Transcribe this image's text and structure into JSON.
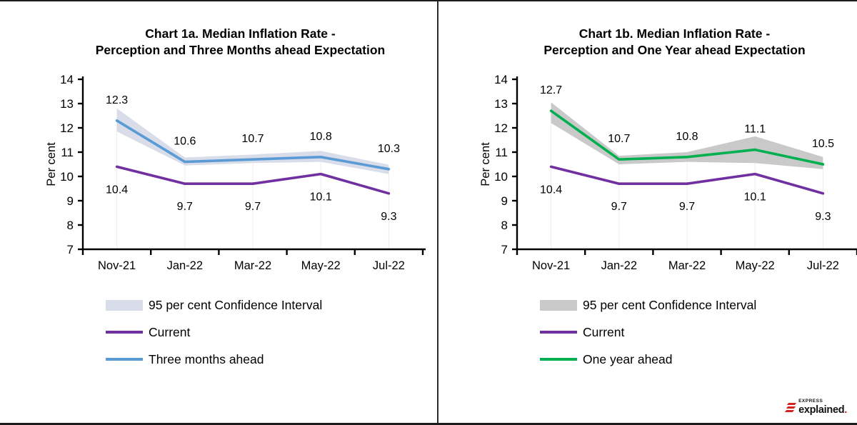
{
  "panels": [
    {
      "title_line1": "Chart 1a. Median Inflation Rate -",
      "title_line2": "Perception and Three Months ahead Expectation",
      "legend": [
        {
          "label": "95 per cent Confidence Interval"
        },
        {
          "label": "Current"
        },
        {
          "label": "Three months ahead"
        }
      ]
    },
    {
      "title_line1": "Chart 1b. Median Inflation Rate -",
      "title_line2": "Perception and One Year ahead Expectation",
      "legend": [
        {
          "label": "95 per cent Confidence Interval"
        },
        {
          "label": "Current"
        },
        {
          "label": "One year ahead"
        }
      ]
    }
  ],
  "chart_data": [
    {
      "type": "line",
      "title": "Chart 1a. Median Inflation Rate - Perception and Three Months ahead Expectation",
      "categories": [
        "Nov-21",
        "Jan-22",
        "Mar-22",
        "May-22",
        "Jul-22"
      ],
      "series": [
        {
          "name": "Current",
          "color": "#7030A0",
          "values": [
            10.4,
            9.7,
            9.7,
            10.1,
            9.3
          ],
          "labels": "below"
        },
        {
          "name": "Three months ahead",
          "color": "#5B9BD5",
          "values": [
            12.3,
            10.6,
            10.7,
            10.8,
            10.3
          ],
          "labels": "above"
        }
      ],
      "band": {
        "name": "95 per cent Confidence Interval",
        "color": "#D9DDE9",
        "upper": [
          12.8,
          10.78,
          10.9,
          11.05,
          10.48
        ],
        "lower": [
          11.85,
          10.45,
          10.55,
          10.6,
          10.1
        ]
      },
      "xlabel": "",
      "ylabel": "Per cent",
      "ylim": [
        7,
        14
      ],
      "yticks": [
        7,
        8,
        9,
        10,
        11,
        12,
        13,
        14
      ],
      "grid": false,
      "legend_position": "bottom"
    },
    {
      "type": "line",
      "title": "Chart 1b. Median Inflation Rate - Perception and One Year ahead Expectation",
      "categories": [
        "Nov-21",
        "Jan-22",
        "Mar-22",
        "May-22",
        "Jul-22"
      ],
      "series": [
        {
          "name": "Current",
          "color": "#7030A0",
          "values": [
            10.4,
            9.7,
            9.7,
            10.1,
            9.3
          ],
          "labels": "below"
        },
        {
          "name": "One year ahead",
          "color": "#00B050",
          "values": [
            12.7,
            10.7,
            10.8,
            11.1,
            10.5
          ],
          "labels": "above"
        }
      ],
      "band": {
        "name": "95 per cent Confidence Interval",
        "color": "#C9C9C9",
        "upper": [
          13.05,
          10.85,
          11.0,
          11.65,
          10.8
        ],
        "lower": [
          12.2,
          10.5,
          10.6,
          10.55,
          10.3
        ]
      },
      "xlabel": "",
      "ylabel": "Per cent",
      "ylim": [
        7,
        14
      ],
      "yticks": [
        7,
        8,
        9,
        10,
        11,
        12,
        13,
        14
      ],
      "grid": false,
      "legend_position": "bottom"
    }
  ],
  "logo": {
    "top_text": "EXPRESS",
    "main_text": "explained",
    "dot": ".",
    "accent": "#D42420"
  }
}
